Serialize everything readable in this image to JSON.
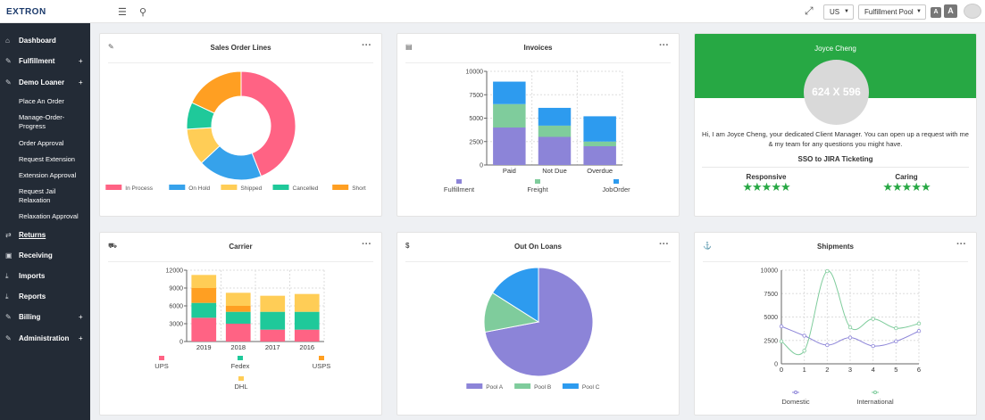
{
  "brand": {
    "logo_text": "EXTRON"
  },
  "topbar": {
    "country_select": "US",
    "pool_select": "Fulfillment Pool",
    "font_small": "A",
    "font_large": "A"
  },
  "sidebar": {
    "items": [
      {
        "label": "Dashboard",
        "icon": "home-icon",
        "plus": ""
      },
      {
        "label": "Fulfillment",
        "icon": "edit-icon",
        "plus": "+"
      },
      {
        "label": "Demo Loaner",
        "icon": "edit-icon",
        "plus": "+"
      },
      {
        "label": "Returns",
        "icon": "exchange-icon",
        "plus": ""
      },
      {
        "label": "Receiving",
        "icon": "inbox-icon",
        "plus": ""
      },
      {
        "label": "Imports",
        "icon": "download-icon",
        "plus": ""
      },
      {
        "label": "Reports",
        "icon": "download-icon",
        "plus": ""
      },
      {
        "label": "Billing",
        "icon": "edit-icon",
        "plus": "+"
      },
      {
        "label": "Administration",
        "icon": "edit-icon",
        "plus": "+"
      }
    ],
    "sub_items": [
      "Place An Order",
      "Manage-Order-Progress",
      "Order Approval",
      "Request Extension",
      "Extension Approval",
      "Request Jail Relaxation",
      "Relaxation Approval"
    ]
  },
  "cards": {
    "sales": {
      "title": "Sales Order Lines",
      "menu": "···"
    },
    "invoices": {
      "title": "Invoices",
      "menu": "···"
    },
    "profile": {
      "name": "Joyce Cheng",
      "placeholder": "624 X 596",
      "text": "Hi, I am Joyce Cheng, your dedicated Client Manager. You can open up a request with me & my team for any questions you might have.",
      "link": "SSO to JIRA Ticketing",
      "ratings": [
        {
          "label": "Responsive",
          "stars": "★★★★★"
        },
        {
          "label": "Caring",
          "stars": "★★★★★"
        }
      ]
    },
    "carrier": {
      "title": "Carrier",
      "menu": "···"
    },
    "loans": {
      "title": "Out On Loans",
      "menu": "···"
    },
    "shipments": {
      "title": "Shipments",
      "menu": "···"
    }
  },
  "colors": {
    "sidebar_bg": "#232b36",
    "profile_green": "#27a844",
    "in_process": "#ff6384",
    "on_hold": "#36a2eb",
    "shipped": "#ffcd56",
    "cancelled": "#1fc99a",
    "short": "#ff9f22",
    "purple": "#8c84d8",
    "light_green": "#7fcc9c",
    "blue": "#2d9bef"
  },
  "chart_data": [
    {
      "id": "sales",
      "type": "doughnut",
      "labels": [
        "In Process",
        "On Hold",
        "Shipped",
        "Cancelled",
        "Short"
      ],
      "values": [
        44,
        19,
        11,
        8,
        18
      ],
      "colors": [
        "#ff6384",
        "#36a2eb",
        "#ffcd56",
        "#1fc99a",
        "#ff9f22"
      ],
      "legend_position": "bottom"
    },
    {
      "id": "invoices",
      "type": "bar",
      "stacked": true,
      "categories": [
        "Paid",
        "Not Due",
        "Overdue"
      ],
      "series": [
        {
          "name": "Fulfillment",
          "values": [
            4000,
            3000,
            2000
          ],
          "color": "#8c84d8"
        },
        {
          "name": "Freight",
          "values": [
            2500,
            1200,
            500
          ],
          "color": "#7fcc9c"
        },
        {
          "name": "JobOrder",
          "values": [
            2400,
            1900,
            2700
          ],
          "color": "#2d9bef"
        }
      ],
      "y_ticks": [
        0,
        2500,
        5000,
        7500,
        10000
      ],
      "ylim": [
        0,
        10000
      ],
      "grid": true,
      "legend_position": "bottom"
    },
    {
      "id": "carrier",
      "type": "bar",
      "stacked": true,
      "categories": [
        "2019",
        "2018",
        "2017",
        "2016"
      ],
      "series": [
        {
          "name": "UPS",
          "values": [
            4000,
            3000,
            2000,
            2000
          ],
          "color": "#ff6384"
        },
        {
          "name": "Fedex",
          "values": [
            2500,
            2000,
            3000,
            3000
          ],
          "color": "#1fc99a"
        },
        {
          "name": "USPS",
          "values": [
            2500,
            1000,
            0,
            0
          ],
          "color": "#ff9f22"
        },
        {
          "name": "DHL",
          "values": [
            2200,
            2200,
            2700,
            3000
          ],
          "color": "#ffcd56"
        }
      ],
      "y_ticks": [
        0,
        3000,
        6000,
        9000,
        12000
      ],
      "ylim": [
        0,
        12000
      ],
      "grid": true,
      "legend_position": "bottom"
    },
    {
      "id": "loans",
      "type": "pie",
      "labels": [
        "Pool A",
        "Pool B",
        "Pool C"
      ],
      "values": [
        72,
        12,
        16
      ],
      "colors": [
        "#8c84d8",
        "#7fcc9c",
        "#2d9bef"
      ],
      "legend_position": "bottom"
    },
    {
      "id": "shipments",
      "type": "line",
      "x": [
        0,
        1,
        2,
        3,
        4,
        5,
        6
      ],
      "series": [
        {
          "name": "Domestic",
          "values": [
            4000,
            3000,
            2000,
            2800,
            1900,
            2400,
            3500
          ],
          "color": "#8c84d8"
        },
        {
          "name": "International",
          "values": [
            2400,
            1400,
            9900,
            3900,
            4800,
            3800,
            4300
          ],
          "color": "#7fcc9c"
        }
      ],
      "y_ticks": [
        0,
        2500,
        5000,
        7500,
        10000
      ],
      "ylim": [
        0,
        10000
      ],
      "grid": true,
      "legend_position": "bottom"
    }
  ]
}
